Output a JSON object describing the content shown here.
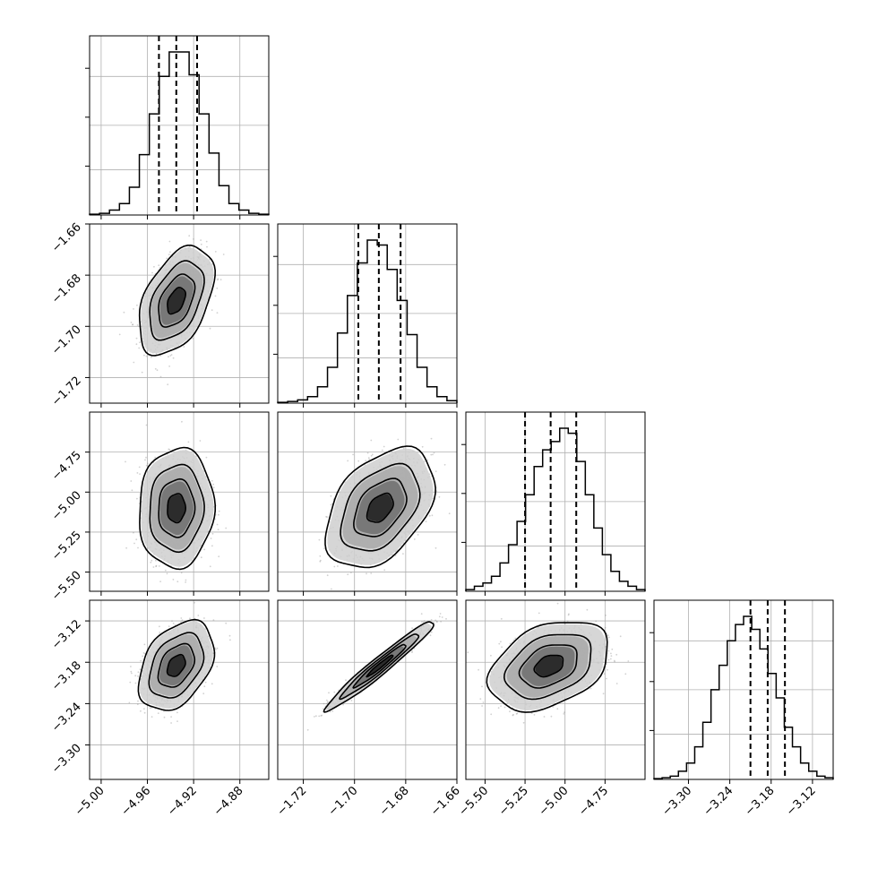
{
  "chart_data": {
    "type": "corner",
    "colors": {
      "line": "#000000",
      "grid": "#b0b0b0",
      "background": "#ffffff"
    },
    "grid": true,
    "parameters": [
      {
        "ticks": [
          -5.0,
          -4.96,
          -4.92,
          -4.88
        ],
        "tick_labels": [
          "−5.00",
          "−4.96",
          "−4.92",
          "−4.88"
        ],
        "range": [
          -5.01,
          -4.855
        ],
        "mean": -4.935,
        "std": 0.013,
        "quantiles": [
          -4.95,
          -4.935,
          -4.917
        ],
        "hist": [
          0.5,
          1,
          3,
          7,
          17,
          37,
          62,
          85,
          100,
          100,
          86,
          62,
          38,
          18,
          7,
          3,
          1,
          0.5
        ]
      },
      {
        "ticks": [
          -1.72,
          -1.7,
          -1.68,
          -1.66
        ],
        "tick_labels": [
          "−1.72",
          "−1.70",
          "−1.68",
          "−1.66"
        ],
        "range": [
          -1.73,
          -1.66
        ],
        "mean": -1.69,
        "std": 0.0085,
        "quantiles": [
          -1.6985,
          -1.6905,
          -1.682
        ],
        "hist": [
          0.5,
          1,
          2,
          4,
          10,
          22,
          43,
          66,
          86,
          100,
          97,
          82,
          63,
          42,
          22,
          10,
          4,
          1.5
        ]
      },
      {
        "ticks": [
          -5.5,
          -5.25,
          -5.0,
          -4.75
        ],
        "tick_labels": [
          "−5.50",
          "−5.25",
          "−5.00",
          "−4.75"
        ],
        "range": [
          -5.62,
          -4.5
        ],
        "mean": -5.1,
        "std": 0.15,
        "quantiles": [
          -5.25,
          -5.09,
          -4.93
        ],
        "hist": [
          1,
          3,
          5,
          9,
          17,
          28,
          42,
          58,
          75,
          85,
          90,
          98,
          95,
          78,
          58,
          38,
          22,
          12,
          6,
          3,
          1
        ]
      },
      {
        "ticks": [
          -3.3,
          -3.24,
          -3.18,
          -3.12
        ],
        "tick_labels": [
          "−3.30",
          "−3.24",
          "−3.18",
          "−3.12"
        ],
        "range": [
          -3.35,
          -3.09
        ],
        "mean": -3.185,
        "std": 0.026,
        "quantiles": [
          -3.21,
          -3.185,
          -3.16
        ],
        "hist": [
          0.5,
          1,
          2,
          5,
          10,
          20,
          35,
          55,
          70,
          85,
          95,
          100,
          92,
          80,
          65,
          50,
          32,
          20,
          10,
          5,
          2,
          1
        ]
      }
    ],
    "correlations": [
      [
        1.0,
        0.45,
        0.05,
        0.38
      ],
      [
        0.45,
        1.0,
        0.42,
        0.97
      ],
      [
        0.05,
        0.42,
        1.0,
        0.36
      ],
      [
        0.38,
        0.97,
        0.36,
        1.0
      ]
    ]
  }
}
